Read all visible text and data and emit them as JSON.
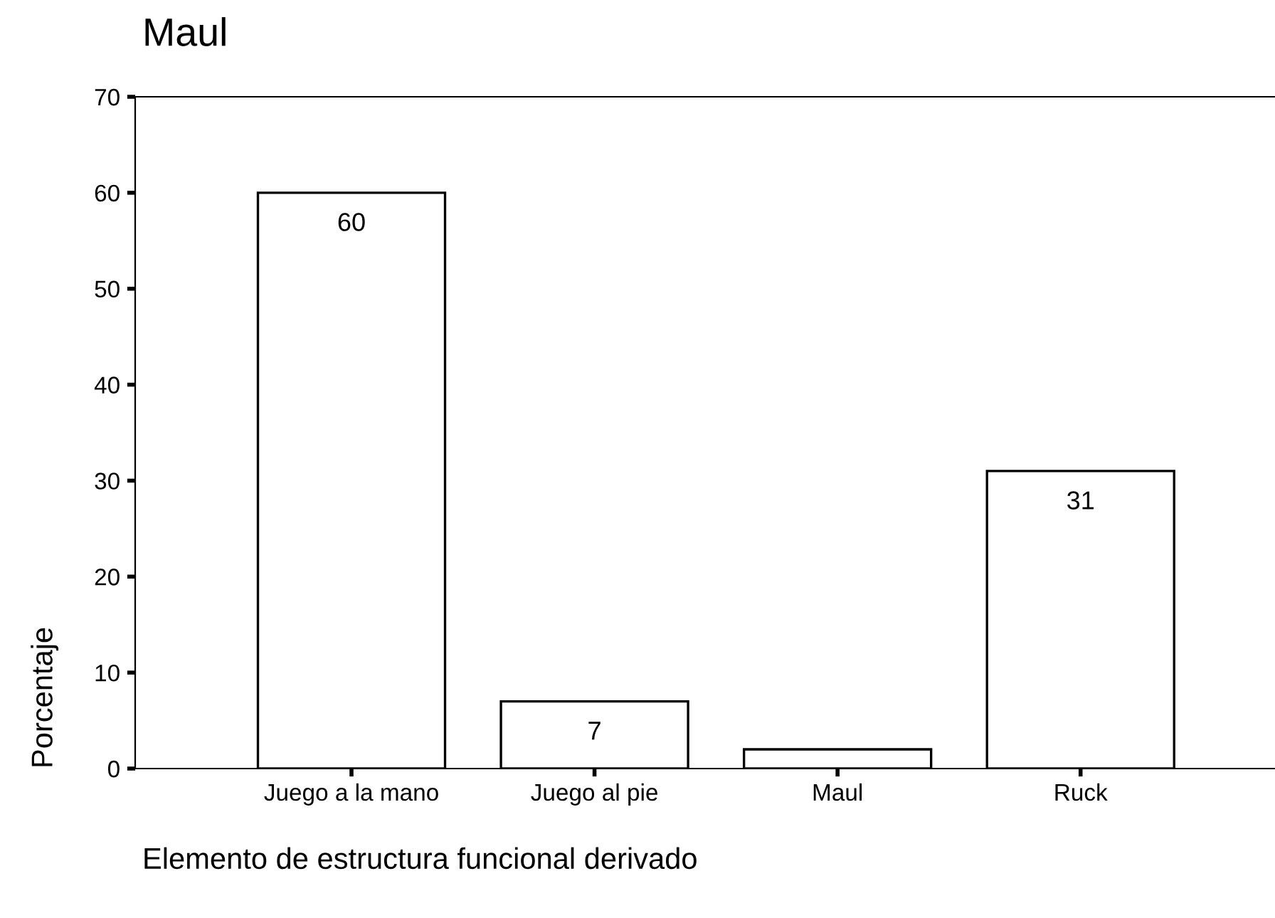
{
  "chart_data": {
    "type": "bar",
    "title": "Maul",
    "xlabel": "Elemento de estructura funcional derivado",
    "ylabel": "Porcentaje",
    "categories": [
      "Juego a la mano",
      "Juego al pie",
      "Maul",
      "Ruck"
    ],
    "values": [
      60,
      7,
      2,
      31
    ],
    "value_labels": [
      "60",
      "7",
      null,
      "31"
    ],
    "color": "#ffffff",
    "ylim": [
      0,
      70
    ],
    "yticks": [
      0,
      10,
      20,
      30,
      40,
      50,
      60,
      70
    ],
    "grid": false,
    "legend": false
  }
}
